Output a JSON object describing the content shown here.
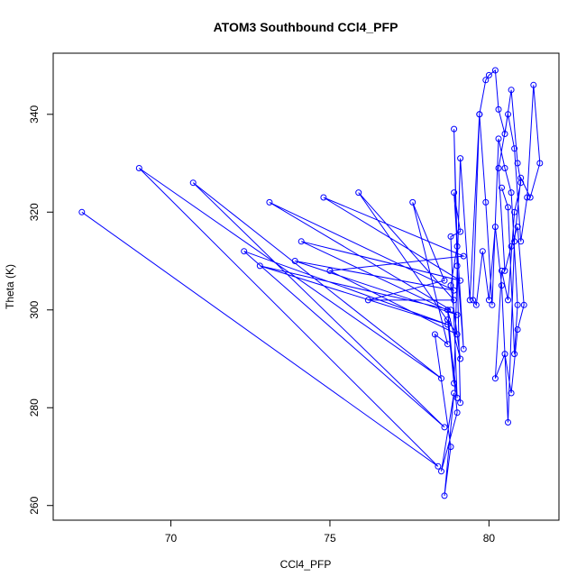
{
  "chart_data": {
    "type": "line",
    "title": "ATOM3 Southbound CCl4_PFP",
    "xlabel": "CCl4_PFP",
    "ylabel": "Theta (K)",
    "xlim": [
      66.3,
      82.2
    ],
    "ylim": [
      257.0,
      352.5
    ],
    "x_ticks": [
      70,
      75,
      80
    ],
    "y_ticks": [
      260,
      280,
      300,
      320,
      340
    ],
    "grid": false,
    "line_color": "#0000ff",
    "marker": "open-circle",
    "series": [
      {
        "x": [
          67.2,
          78.4,
          69.0,
          78.5,
          70.7,
          78.6,
          72.3,
          78.7,
          72.8,
          78.8,
          73.1,
          78.9,
          73.9,
          79.0,
          74.1,
          79.1,
          74.8,
          79.2,
          75.0,
          79.0,
          75.9,
          78.9,
          76.2,
          78.6,
          77.6,
          78.7,
          78.3,
          78.8,
          78.6,
          78.9,
          78.5,
          79.0,
          78.7,
          79.1,
          78.8,
          79.0,
          78.9,
          79.1,
          79.0,
          79.2,
          78.9,
          79.1,
          78.8,
          79.0,
          78.7,
          78.9,
          79.1,
          79.4,
          79.7,
          79.9,
          80.0,
          80.2,
          80.3,
          80.5,
          80.7,
          80.9,
          81.0,
          80.8,
          80.6,
          80.4,
          80.2,
          80.5,
          80.7,
          80.9,
          81.1,
          80.9,
          80.7,
          80.5,
          80.3,
          80.6,
          80.8,
          81.0,
          81.2,
          81.4,
          81.6,
          81.3,
          81.0,
          80.8,
          80.6,
          80.4,
          80.2,
          80.0,
          79.8,
          79.6,
          79.5,
          79.7,
          79.9,
          80.1,
          80.3,
          80.5,
          80.7,
          80.9,
          80.8,
          80.6,
          80.4
        ],
        "y": [
          320,
          268,
          329,
          286,
          326,
          276,
          312,
          297,
          309,
          300,
          322,
          304,
          310,
          299,
          314,
          306,
          323,
          311,
          308,
          295,
          324,
          302,
          302,
          306,
          322,
          293,
          295,
          272,
          262,
          283,
          267,
          279,
          300,
          290,
          305,
          313,
          337,
          281,
          309,
          292,
          324,
          316,
          315,
          282,
          298,
          285,
          331,
          302,
          340,
          347,
          348,
          349,
          341,
          336,
          345,
          330,
          326,
          320,
          302,
          308,
          286,
          291,
          283,
          296,
          301,
          317,
          313,
          308,
          329,
          340,
          333,
          314,
          323,
          346,
          330,
          323,
          327,
          314,
          277,
          305,
          317,
          302,
          312,
          301,
          302,
          340,
          322,
          301,
          335,
          329,
          324,
          301,
          291,
          321,
          325
        ]
      }
    ]
  }
}
